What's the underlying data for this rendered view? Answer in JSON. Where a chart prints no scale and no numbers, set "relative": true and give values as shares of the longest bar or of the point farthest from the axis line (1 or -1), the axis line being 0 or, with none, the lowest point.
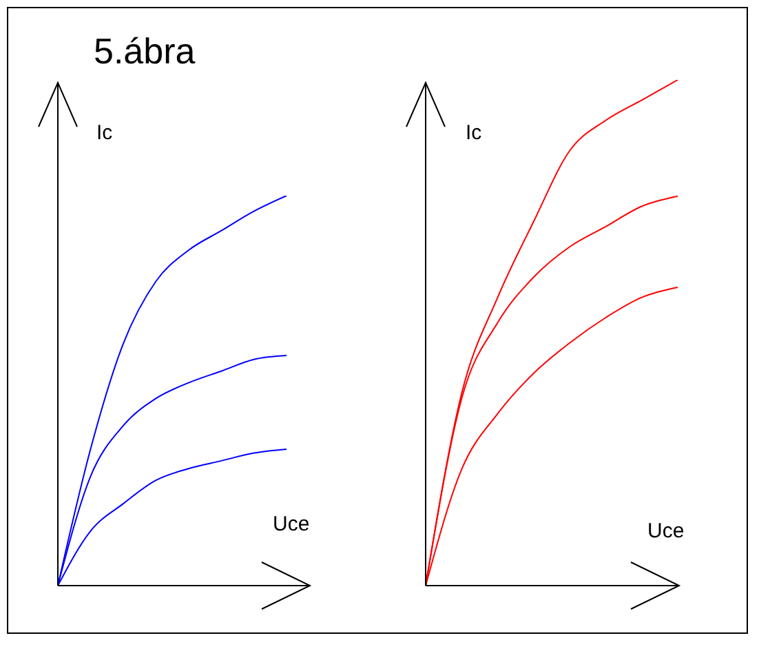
{
  "chart_data": [
    {
      "type": "line",
      "title": "5.ábra",
      "xlabel": "Uce",
      "ylabel": "Ic",
      "relative": true,
      "marker": "none",
      "categories": [
        null,
        null,
        null,
        null,
        null,
        null,
        null,
        null
      ],
      "series": [
        {
          "color": "#0000ff",
          "values": [
            0,
            0.35,
            0.62,
            0.78,
            0.86,
            0.91,
            0.96,
            1
          ]
        },
        {
          "color": "#0000ff",
          "values": [
            0,
            0.28,
            0.41,
            0.48,
            0.52,
            0.55,
            0.58,
            0.59
          ]
        },
        {
          "color": "#0000ff",
          "values": [
            0,
            0.14,
            0.21,
            0.27,
            0.3,
            0.32,
            0.34,
            0.35
          ]
        }
      ]
    },
    {
      "type": "line",
      "xlabel": "Uce",
      "ylabel": "Ic",
      "relative": true,
      "marker": "none",
      "categories": [
        null,
        null,
        null,
        null,
        null,
        null,
        null,
        null
      ],
      "series": [
        {
          "color": "#ff0000",
          "values": [
            0,
            0.38,
            0.57,
            0.72,
            0.86,
            0.92,
            0.96,
            1
          ]
        },
        {
          "color": "#ff0000",
          "values": [
            0,
            0.37,
            0.52,
            0.61,
            0.67,
            0.71,
            0.75,
            0.77
          ]
        },
        {
          "color": "#ff0000",
          "values": [
            0,
            0.23,
            0.34,
            0.42,
            0.48,
            0.53,
            0.57,
            0.59
          ]
        }
      ]
    }
  ]
}
